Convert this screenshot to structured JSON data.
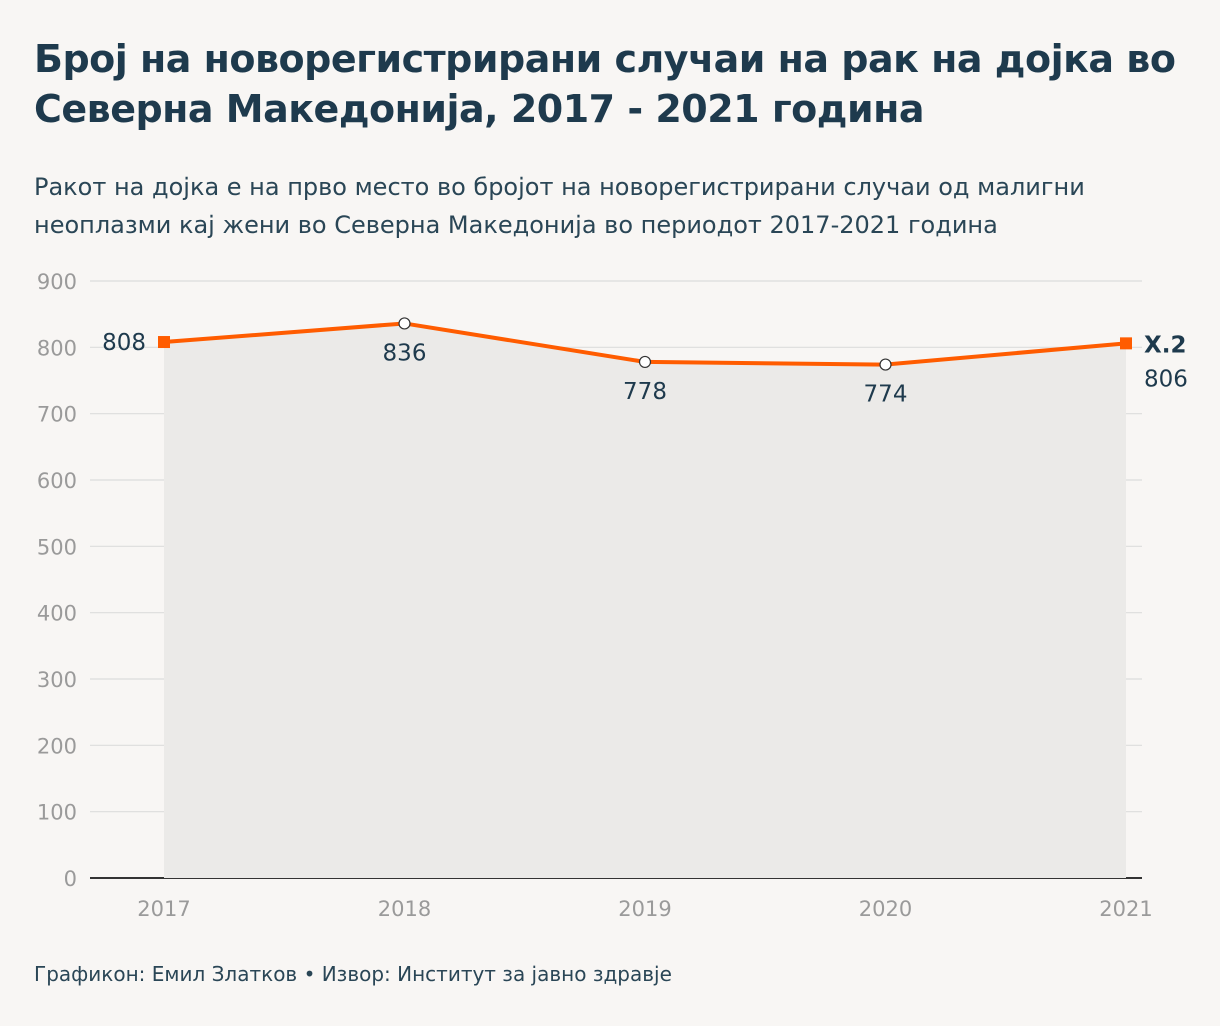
{
  "title": "Број на новорегистрирани случаи на рак на дојка во Северна Македонија, 2017 - 2021 година",
  "subtitle": "Ракот на дојка е на прво место во бројот на новорегистрирани случаи од малигни неоплазми кај жени во Северна Македонија во периодот 2017-2021 година",
  "footer": "Графикон: Емил Златков • Извор: Институт за јавно здравје",
  "colors": {
    "line": "#ff5c00",
    "area": "#ebeae8",
    "grid": "#dcdcdc",
    "baseline": "#333333"
  },
  "chart_data": {
    "type": "line",
    "categories": [
      "2017",
      "2018",
      "2019",
      "2020",
      "2021"
    ],
    "series": [
      {
        "name": "X.2",
        "values": [
          808,
          836,
          778,
          774,
          806
        ],
        "value_labels": [
          "808",
          "836",
          "778",
          "774",
          "806"
        ]
      }
    ],
    "y_ticks": [
      0,
      100,
      200,
      300,
      400,
      500,
      600,
      700,
      800,
      900
    ],
    "y_tick_labels": [
      "0",
      "100",
      "200",
      "300",
      "400",
      "500",
      "600",
      "700",
      "800",
      "900"
    ],
    "ylim": [
      0,
      900
    ],
    "grid": true,
    "area_fill": true
  }
}
